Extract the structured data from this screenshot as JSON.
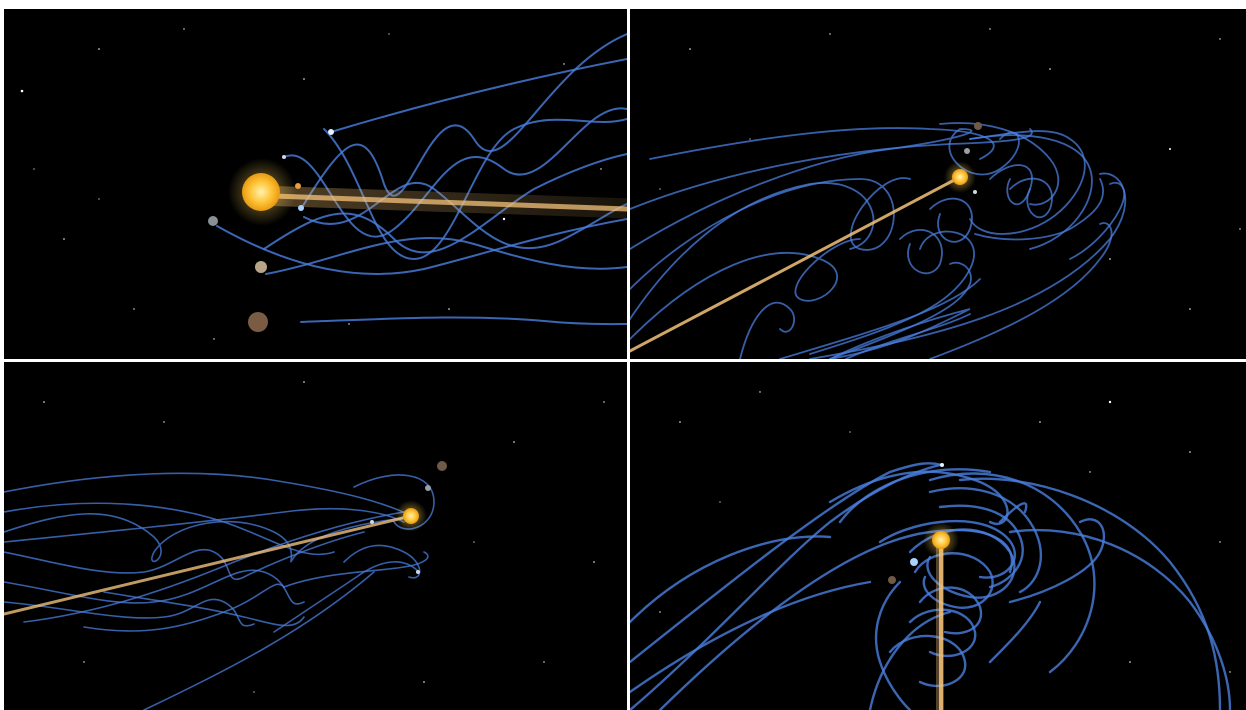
{
  "panels": [
    {
      "id": "panel-1",
      "description_view": "side"
    },
    {
      "id": "panel-2",
      "description_view": "oblique"
    },
    {
      "id": "panel-3",
      "description_view": "oblique-far"
    },
    {
      "id": "panel-4",
      "description_view": "top-down"
    }
  ],
  "colors": {
    "background": "#000000",
    "orbit_trail": "#4a7fe0",
    "sun": "#ffc53a",
    "sun_trail": "#d9a24a",
    "divider": "#ffffff"
  }
}
